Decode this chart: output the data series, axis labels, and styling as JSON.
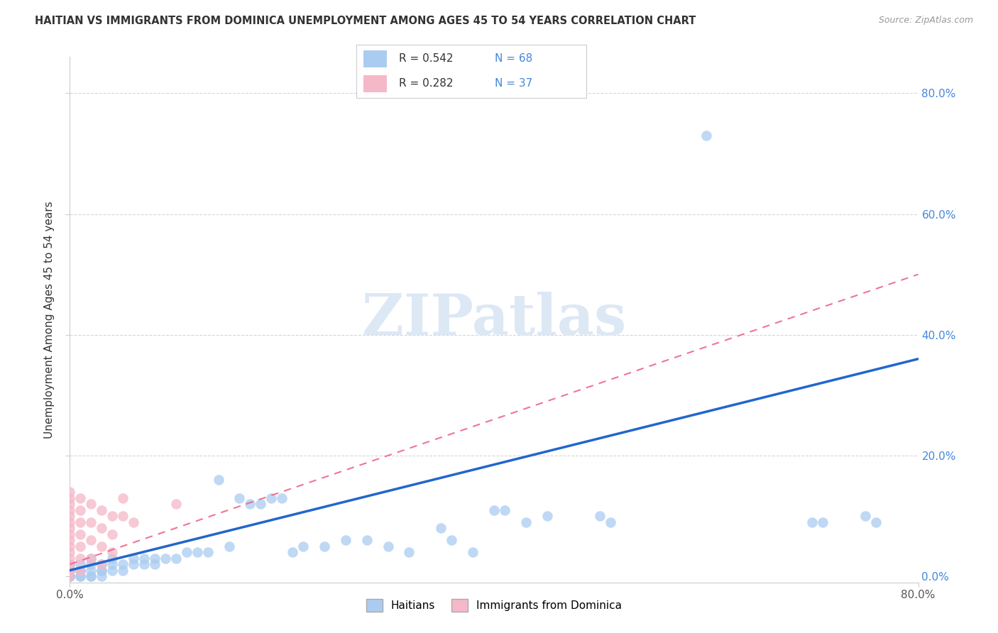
{
  "title": "HAITIAN VS IMMIGRANTS FROM DOMINICA UNEMPLOYMENT AMONG AGES 45 TO 54 YEARS CORRELATION CHART",
  "source": "Source: ZipAtlas.com",
  "ylabel": "Unemployment Among Ages 45 to 54 years",
  "xlim": [
    0.0,
    0.8
  ],
  "ylim": [
    -0.01,
    0.86
  ],
  "xtick_positions": [
    0.0,
    0.8
  ],
  "xtick_labels": [
    "0.0%",
    "80.0%"
  ],
  "ytick_positions": [
    0.0,
    0.2,
    0.4,
    0.6,
    0.8
  ],
  "ytick_labels": [
    "0.0%",
    "20.0%",
    "40.0%",
    "60.0%",
    "80.0%"
  ],
  "blue_scatter_color": "#aaccf0",
  "pink_scatter_color": "#f5b8c8",
  "blue_line_color": "#2266cc",
  "pink_line_color": "#ee6688",
  "watermark_text": "ZIPatlas",
  "watermark_color": "#dde8f5",
  "background_color": "#ffffff",
  "grid_color": "#cccccc",
  "blue_points": [
    [
      0.0,
      0.0
    ],
    [
      0.0,
      0.01
    ],
    [
      0.0,
      0.02
    ],
    [
      0.0,
      0.0
    ],
    [
      0.0,
      0.01
    ],
    [
      0.0,
      0.0
    ],
    [
      0.0,
      0.02
    ],
    [
      0.0,
      0.0
    ],
    [
      0.0,
      0.01
    ],
    [
      0.0,
      0.0
    ],
    [
      0.01,
      0.0
    ],
    [
      0.01,
      0.01
    ],
    [
      0.01,
      0.02
    ],
    [
      0.01,
      0.0
    ],
    [
      0.01,
      0.01
    ],
    [
      0.02,
      0.0
    ],
    [
      0.02,
      0.01
    ],
    [
      0.02,
      0.02
    ],
    [
      0.02,
      0.03
    ],
    [
      0.02,
      0.0
    ],
    [
      0.03,
      0.01
    ],
    [
      0.03,
      0.02
    ],
    [
      0.03,
      0.0
    ],
    [
      0.03,
      0.01
    ],
    [
      0.04,
      0.01
    ],
    [
      0.04,
      0.02
    ],
    [
      0.04,
      0.03
    ],
    [
      0.05,
      0.01
    ],
    [
      0.05,
      0.02
    ],
    [
      0.06,
      0.02
    ],
    [
      0.06,
      0.03
    ],
    [
      0.07,
      0.02
    ],
    [
      0.07,
      0.03
    ],
    [
      0.08,
      0.02
    ],
    [
      0.08,
      0.03
    ],
    [
      0.09,
      0.03
    ],
    [
      0.1,
      0.03
    ],
    [
      0.11,
      0.04
    ],
    [
      0.12,
      0.04
    ],
    [
      0.13,
      0.04
    ],
    [
      0.14,
      0.16
    ],
    [
      0.15,
      0.05
    ],
    [
      0.16,
      0.13
    ],
    [
      0.17,
      0.12
    ],
    [
      0.18,
      0.12
    ],
    [
      0.19,
      0.13
    ],
    [
      0.2,
      0.13
    ],
    [
      0.21,
      0.04
    ],
    [
      0.22,
      0.05
    ],
    [
      0.24,
      0.05
    ],
    [
      0.26,
      0.06
    ],
    [
      0.28,
      0.06
    ],
    [
      0.3,
      0.05
    ],
    [
      0.32,
      0.04
    ],
    [
      0.35,
      0.08
    ],
    [
      0.36,
      0.06
    ],
    [
      0.38,
      0.04
    ],
    [
      0.4,
      0.11
    ],
    [
      0.41,
      0.11
    ],
    [
      0.43,
      0.09
    ],
    [
      0.45,
      0.1
    ],
    [
      0.5,
      0.1
    ],
    [
      0.51,
      0.09
    ],
    [
      0.6,
      0.73
    ],
    [
      0.7,
      0.09
    ],
    [
      0.71,
      0.09
    ],
    [
      0.75,
      0.1
    ],
    [
      0.76,
      0.09
    ]
  ],
  "pink_points": [
    [
      0.0,
      0.14
    ],
    [
      0.0,
      0.13
    ],
    [
      0.0,
      0.12
    ],
    [
      0.0,
      0.11
    ],
    [
      0.0,
      0.1
    ],
    [
      0.0,
      0.09
    ],
    [
      0.0,
      0.08
    ],
    [
      0.0,
      0.07
    ],
    [
      0.0,
      0.06
    ],
    [
      0.0,
      0.05
    ],
    [
      0.0,
      0.04
    ],
    [
      0.0,
      0.03
    ],
    [
      0.0,
      0.02
    ],
    [
      0.0,
      0.01
    ],
    [
      0.0,
      0.0
    ],
    [
      0.01,
      0.13
    ],
    [
      0.01,
      0.11
    ],
    [
      0.01,
      0.09
    ],
    [
      0.01,
      0.07
    ],
    [
      0.01,
      0.05
    ],
    [
      0.01,
      0.03
    ],
    [
      0.01,
      0.01
    ],
    [
      0.02,
      0.12
    ],
    [
      0.02,
      0.09
    ],
    [
      0.02,
      0.06
    ],
    [
      0.02,
      0.03
    ],
    [
      0.03,
      0.11
    ],
    [
      0.03,
      0.08
    ],
    [
      0.03,
      0.05
    ],
    [
      0.03,
      0.02
    ],
    [
      0.04,
      0.1
    ],
    [
      0.04,
      0.07
    ],
    [
      0.04,
      0.04
    ],
    [
      0.05,
      0.13
    ],
    [
      0.05,
      0.1
    ],
    [
      0.06,
      0.09
    ],
    [
      0.1,
      0.12
    ]
  ],
  "blue_regression": {
    "x_start": 0.0,
    "y_start": 0.01,
    "x_end": 0.8,
    "y_end": 0.36
  },
  "pink_regression": {
    "x_start": 0.0,
    "y_start": 0.02,
    "x_end": 0.8,
    "y_end": 0.5
  }
}
